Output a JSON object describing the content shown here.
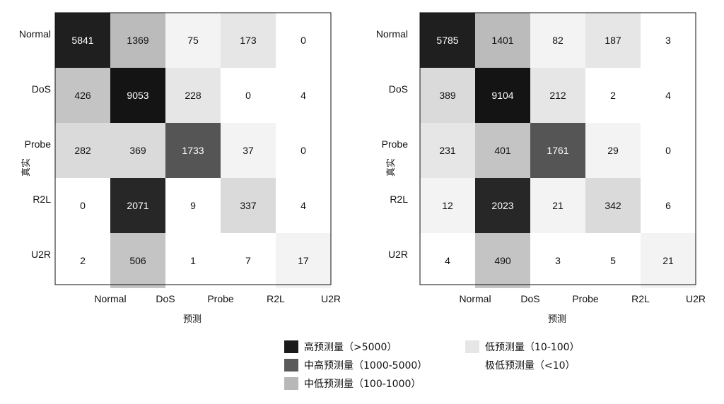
{
  "chart_data": [
    {
      "type": "heatmap",
      "title": "",
      "xlabel": "预测",
      "ylabel": "真实",
      "rows": [
        "Normal",
        "DoS",
        "Probe",
        "R2L",
        "U2R"
      ],
      "columns": [
        "Normal",
        "DoS",
        "Probe",
        "R2L",
        "U2R"
      ],
      "values": [
        [
          5841,
          1369,
          75,
          173,
          0
        ],
        [
          426,
          9053,
          228,
          0,
          4
        ],
        [
          282,
          369,
          1733,
          37,
          0
        ],
        [
          0,
          2071,
          9,
          337,
          4
        ],
        [
          2,
          506,
          1,
          7,
          17
        ]
      ]
    },
    {
      "type": "heatmap",
      "title": "",
      "xlabel": "预测",
      "ylabel": "真实",
      "rows": [
        "Normal",
        "DoS",
        "Probe",
        "R2L",
        "U2R"
      ],
      "columns": [
        "Normal",
        "DoS",
        "Probe",
        "R2L",
        "U2R"
      ],
      "values": [
        [
          5785,
          1401,
          82,
          187,
          3
        ],
        [
          389,
          9104,
          212,
          2,
          4
        ],
        [
          231,
          401,
          1761,
          29,
          0
        ],
        [
          12,
          2023,
          21,
          342,
          6
        ],
        [
          4,
          490,
          3,
          5,
          21
        ]
      ]
    }
  ],
  "legend": [
    {
      "label": "高预测量（>5000）",
      "color": "#1a1a1a"
    },
    {
      "label": "中高预测量（1000-5000）",
      "color": "#5a5a5a"
    },
    {
      "label": "中低预测量（100-1000）",
      "color": "#b8b8b8"
    },
    {
      "label": "低预测量（10-100）",
      "color": "#e6e6e6"
    },
    {
      "label": "极低预测量（<10）",
      "color": "#ffffff"
    }
  ]
}
